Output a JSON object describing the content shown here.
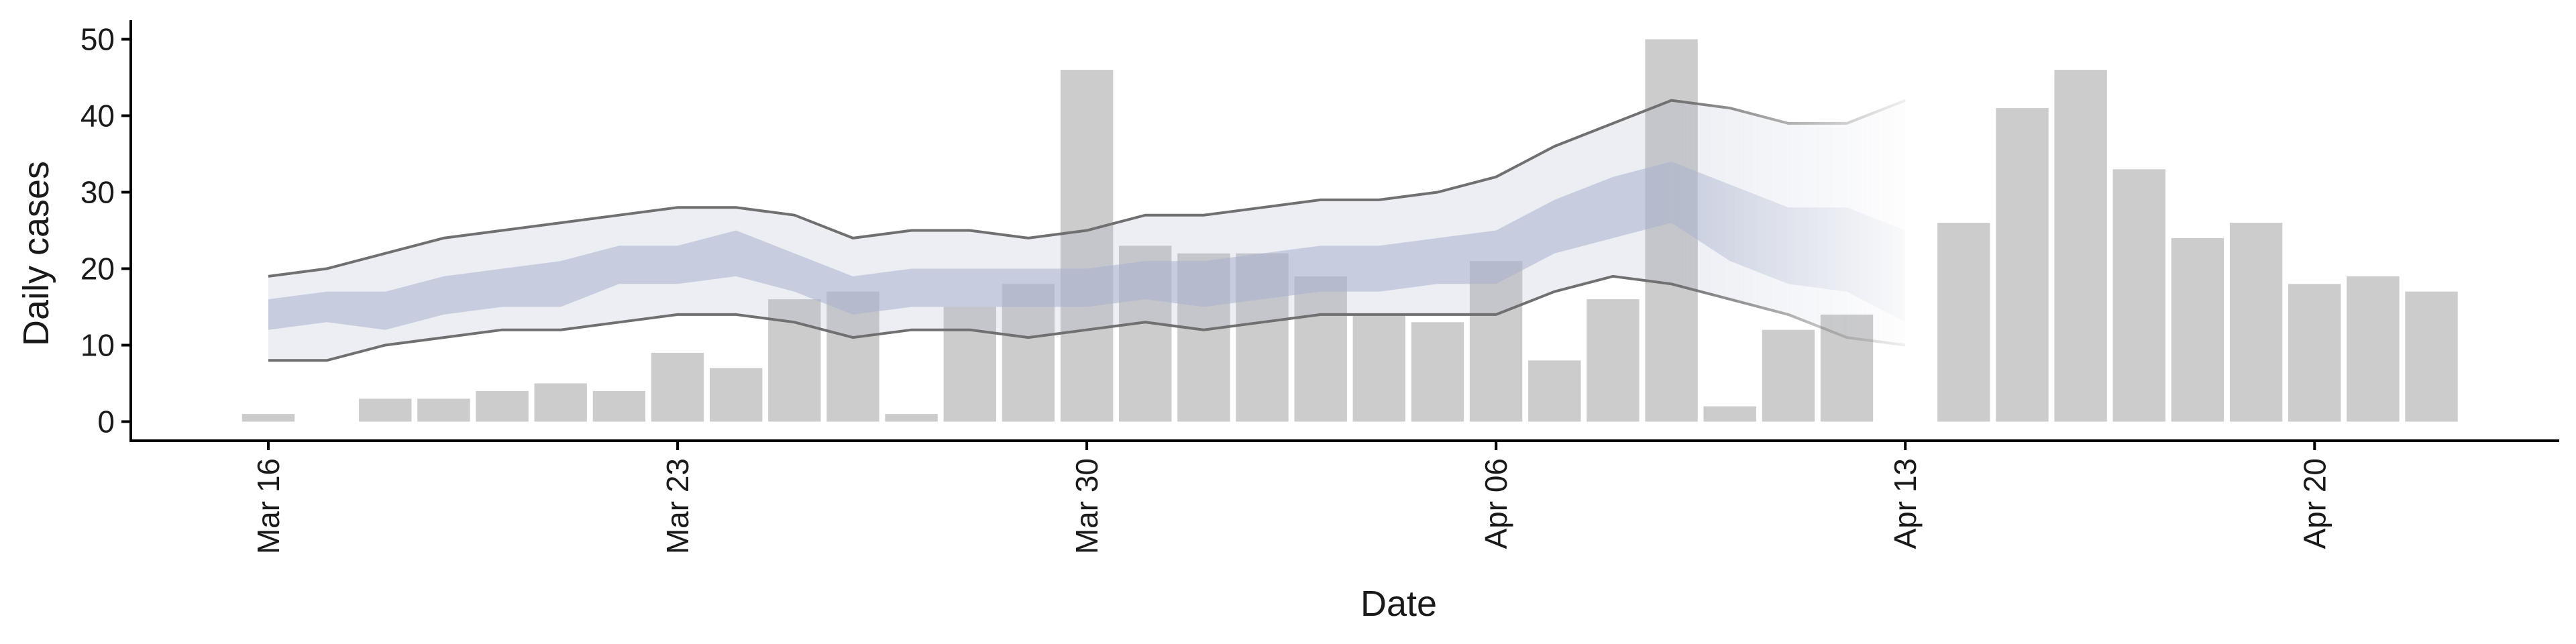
{
  "chart_data": {
    "type": "bar",
    "title": "",
    "xlabel": "Date",
    "ylabel": "Daily cases",
    "ylim": [
      -2.5,
      52.5
    ],
    "yticks": [
      0,
      10,
      20,
      30,
      40,
      50
    ],
    "grid": false,
    "legend": "none",
    "x_ticks": [
      {
        "date": "2020-03-16",
        "label": "Mar 16"
      },
      {
        "date": "2020-03-23",
        "label": "Mar 23"
      },
      {
        "date": "2020-03-30",
        "label": "Mar 30"
      },
      {
        "date": "2020-04-06",
        "label": "Apr 06"
      },
      {
        "date": "2020-04-13",
        "label": "Apr 13"
      },
      {
        "date": "2020-04-20",
        "label": "Apr 20"
      }
    ],
    "bars": {
      "name": "Daily cases",
      "color": "#cccccc",
      "points": [
        {
          "date": "2020-03-16",
          "value": 1
        },
        {
          "date": "2020-03-17",
          "value": 0
        },
        {
          "date": "2020-03-18",
          "value": 3
        },
        {
          "date": "2020-03-19",
          "value": 3
        },
        {
          "date": "2020-03-20",
          "value": 4
        },
        {
          "date": "2020-03-21",
          "value": 5
        },
        {
          "date": "2020-03-22",
          "value": 4
        },
        {
          "date": "2020-03-23",
          "value": 9
        },
        {
          "date": "2020-03-24",
          "value": 7
        },
        {
          "date": "2020-03-25",
          "value": 16
        },
        {
          "date": "2020-03-26",
          "value": 17
        },
        {
          "date": "2020-03-27",
          "value": 1
        },
        {
          "date": "2020-03-28",
          "value": 15
        },
        {
          "date": "2020-03-29",
          "value": 18
        },
        {
          "date": "2020-03-30",
          "value": 46
        },
        {
          "date": "2020-03-31",
          "value": 23
        },
        {
          "date": "2020-04-01",
          "value": 22
        },
        {
          "date": "2020-04-02",
          "value": 22
        },
        {
          "date": "2020-04-03",
          "value": 19
        },
        {
          "date": "2020-04-04",
          "value": 14
        },
        {
          "date": "2020-04-05",
          "value": 13
        },
        {
          "date": "2020-04-06",
          "value": 21
        },
        {
          "date": "2020-04-07",
          "value": 8
        },
        {
          "date": "2020-04-08",
          "value": 16
        },
        {
          "date": "2020-04-09",
          "value": 50
        },
        {
          "date": "2020-04-10",
          "value": 2
        },
        {
          "date": "2020-04-11",
          "value": 12
        },
        {
          "date": "2020-04-12",
          "value": 14
        },
        {
          "date": "2020-04-14",
          "value": 26
        },
        {
          "date": "2020-04-15",
          "value": 41
        },
        {
          "date": "2020-04-16",
          "value": 46
        },
        {
          "date": "2020-04-17",
          "value": 33
        },
        {
          "date": "2020-04-18",
          "value": 24
        },
        {
          "date": "2020-04-19",
          "value": 26
        },
        {
          "date": "2020-04-20",
          "value": 18
        },
        {
          "date": "2020-04-21",
          "value": 19
        },
        {
          "date": "2020-04-22",
          "value": 17
        }
      ]
    },
    "estimate": {
      "color_band": "#aab2cc",
      "color_line": "#707070",
      "fade_start_date": "2020-04-09",
      "points": [
        {
          "date": "2020-03-16",
          "outer_lower": 8,
          "outer_upper": 19,
          "inner_lower": 12,
          "inner_upper": 16
        },
        {
          "date": "2020-03-17",
          "outer_lower": 8,
          "outer_upper": 20,
          "inner_lower": 13,
          "inner_upper": 17
        },
        {
          "date": "2020-03-18",
          "outer_lower": 10,
          "outer_upper": 22,
          "inner_lower": 12,
          "inner_upper": 17
        },
        {
          "date": "2020-03-19",
          "outer_lower": 11,
          "outer_upper": 24,
          "inner_lower": 14,
          "inner_upper": 19
        },
        {
          "date": "2020-03-20",
          "outer_lower": 12,
          "outer_upper": 25,
          "inner_lower": 15,
          "inner_upper": 20
        },
        {
          "date": "2020-03-21",
          "outer_lower": 12,
          "outer_upper": 26,
          "inner_lower": 15,
          "inner_upper": 21
        },
        {
          "date": "2020-03-22",
          "outer_lower": 13,
          "outer_upper": 27,
          "inner_lower": 18,
          "inner_upper": 23
        },
        {
          "date": "2020-03-23",
          "outer_lower": 14,
          "outer_upper": 28,
          "inner_lower": 18,
          "inner_upper": 23
        },
        {
          "date": "2020-03-24",
          "outer_lower": 14,
          "outer_upper": 28,
          "inner_lower": 19,
          "inner_upper": 25
        },
        {
          "date": "2020-03-25",
          "outer_lower": 13,
          "outer_upper": 27,
          "inner_lower": 17,
          "inner_upper": 22
        },
        {
          "date": "2020-03-26",
          "outer_lower": 11,
          "outer_upper": 24,
          "inner_lower": 14,
          "inner_upper": 19
        },
        {
          "date": "2020-03-27",
          "outer_lower": 12,
          "outer_upper": 25,
          "inner_lower": 15,
          "inner_upper": 20
        },
        {
          "date": "2020-03-28",
          "outer_lower": 12,
          "outer_upper": 25,
          "inner_lower": 15,
          "inner_upper": 20
        },
        {
          "date": "2020-03-29",
          "outer_lower": 11,
          "outer_upper": 24,
          "inner_lower": 15,
          "inner_upper": 20
        },
        {
          "date": "2020-03-30",
          "outer_lower": 12,
          "outer_upper": 25,
          "inner_lower": 15,
          "inner_upper": 20
        },
        {
          "date": "2020-03-31",
          "outer_lower": 13,
          "outer_upper": 27,
          "inner_lower": 16,
          "inner_upper": 21
        },
        {
          "date": "2020-04-01",
          "outer_lower": 12,
          "outer_upper": 27,
          "inner_lower": 15,
          "inner_upper": 21
        },
        {
          "date": "2020-04-02",
          "outer_lower": 13,
          "outer_upper": 28,
          "inner_lower": 16,
          "inner_upper": 22
        },
        {
          "date": "2020-04-03",
          "outer_lower": 14,
          "outer_upper": 29,
          "inner_lower": 17,
          "inner_upper": 23
        },
        {
          "date": "2020-04-04",
          "outer_lower": 14,
          "outer_upper": 29,
          "inner_lower": 17,
          "inner_upper": 23
        },
        {
          "date": "2020-04-05",
          "outer_lower": 14,
          "outer_upper": 30,
          "inner_lower": 18,
          "inner_upper": 24
        },
        {
          "date": "2020-04-06",
          "outer_lower": 14,
          "outer_upper": 32,
          "inner_lower": 18,
          "inner_upper": 25
        },
        {
          "date": "2020-04-07",
          "outer_lower": 17,
          "outer_upper": 36,
          "inner_lower": 22,
          "inner_upper": 29
        },
        {
          "date": "2020-04-08",
          "outer_lower": 19,
          "outer_upper": 39,
          "inner_lower": 24,
          "inner_upper": 32
        },
        {
          "date": "2020-04-09",
          "outer_lower": 18,
          "outer_upper": 42,
          "inner_lower": 26,
          "inner_upper": 34
        },
        {
          "date": "2020-04-10",
          "outer_lower": 16,
          "outer_upper": 41,
          "inner_lower": 21,
          "inner_upper": 31
        },
        {
          "date": "2020-04-11",
          "outer_lower": 14,
          "outer_upper": 39,
          "inner_lower": 18,
          "inner_upper": 28
        },
        {
          "date": "2020-04-12",
          "outer_lower": 11,
          "outer_upper": 39,
          "inner_lower": 17,
          "inner_upper": 28
        },
        {
          "date": "2020-04-13",
          "outer_lower": 10,
          "outer_upper": 42,
          "inner_lower": 13,
          "inner_upper": 25
        }
      ]
    }
  }
}
